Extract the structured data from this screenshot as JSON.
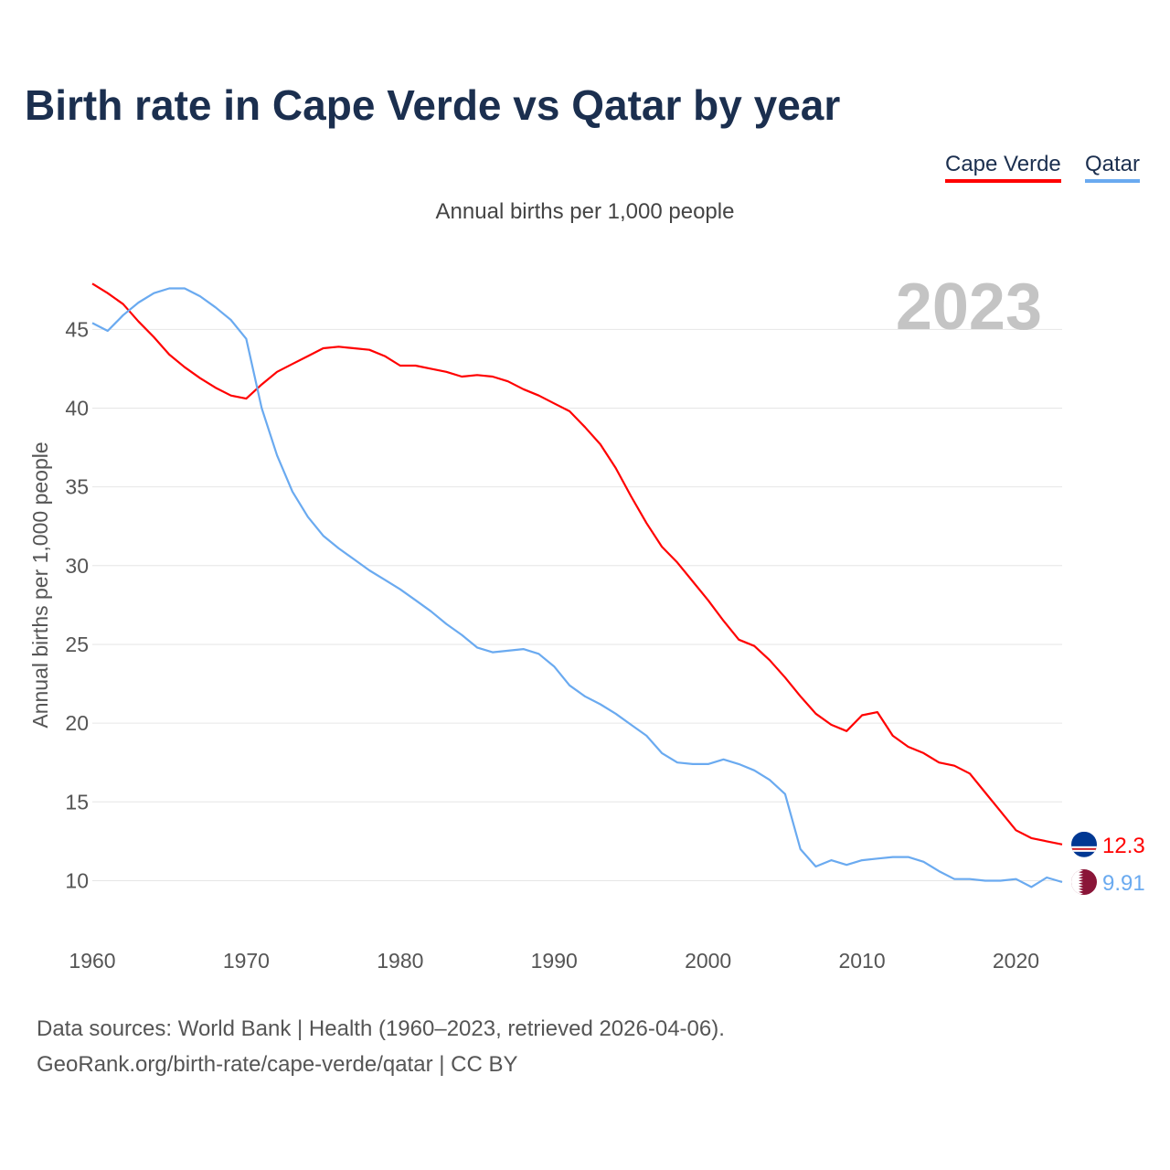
{
  "title": "Birth rate in Cape Verde vs Qatar by year",
  "legend": [
    "Cape Verde",
    "Qatar"
  ],
  "subtitle": "Annual births per 1,000 people",
  "source": [
    "Data sources: World Bank | Health (1960–2023, retrieved 2026-04-06).",
    "GeoRank.org/birth-rate/cape-verde/qatar | CC BY"
  ],
  "chart_data": {
    "type": "line",
    "title": "Birth rate in Cape Verde vs Qatar by year",
    "xlabel": "",
    "ylabel": "Annual births per 1,000 people",
    "year_label": "2023",
    "xlim": [
      1960,
      2023
    ],
    "ylim": [
      7.3,
      48.5
    ],
    "xticks": [
      1960,
      1970,
      1980,
      1990,
      2000,
      2010,
      2020
    ],
    "yticks": [
      10,
      15,
      20,
      25,
      30,
      35,
      40,
      45
    ],
    "grid": true,
    "legend_position": "top-right",
    "x": [
      1960,
      1961,
      1962,
      1963,
      1964,
      1965,
      1966,
      1967,
      1968,
      1969,
      1970,
      1971,
      1972,
      1973,
      1974,
      1975,
      1976,
      1977,
      1978,
      1979,
      1980,
      1981,
      1982,
      1983,
      1984,
      1985,
      1986,
      1987,
      1988,
      1989,
      1990,
      1991,
      1992,
      1993,
      1994,
      1995,
      1996,
      1997,
      1998,
      1999,
      2000,
      2001,
      2002,
      2003,
      2004,
      2005,
      2006,
      2007,
      2008,
      2009,
      2010,
      2011,
      2012,
      2013,
      2014,
      2015,
      2016,
      2017,
      2018,
      2019,
      2020,
      2021,
      2022,
      2023
    ],
    "series": [
      {
        "name": "Cape Verde",
        "color": "#ff0000",
        "end_label": "12.3",
        "values": [
          47.9,
          47.3,
          46.6,
          45.5,
          44.5,
          43.4,
          42.6,
          41.9,
          41.3,
          40.8,
          40.6,
          41.5,
          42.3,
          42.8,
          43.3,
          43.8,
          43.9,
          43.8,
          43.7,
          43.3,
          42.7,
          42.7,
          42.5,
          42.3,
          42.0,
          42.1,
          42.0,
          41.7,
          41.2,
          40.8,
          40.3,
          39.8,
          38.8,
          37.7,
          36.2,
          34.4,
          32.7,
          31.2,
          30.2,
          29.0,
          27.8,
          26.5,
          25.3,
          24.9,
          24.0,
          22.9,
          21.7,
          20.6,
          19.9,
          19.5,
          20.5,
          20.7,
          19.2,
          18.5,
          18.1,
          17.5,
          17.3,
          16.8,
          15.6,
          14.4,
          13.2,
          12.7,
          12.5,
          12.3
        ]
      },
      {
        "name": "Qatar",
        "color": "#6aaaf0",
        "end_label": "9.91",
        "values": [
          45.4,
          44.9,
          45.9,
          46.7,
          47.3,
          47.6,
          47.6,
          47.1,
          46.4,
          45.6,
          44.4,
          40.0,
          37.0,
          34.7,
          33.1,
          31.9,
          31.1,
          30.4,
          29.7,
          29.1,
          28.5,
          27.8,
          27.1,
          26.3,
          25.6,
          24.8,
          24.5,
          24.6,
          24.7,
          24.4,
          23.6,
          22.4,
          21.7,
          21.2,
          20.6,
          19.9,
          19.2,
          18.1,
          17.5,
          17.4,
          17.4,
          17.7,
          17.4,
          17.0,
          16.4,
          15.5,
          12.0,
          10.9,
          11.3,
          11.0,
          11.3,
          11.4,
          11.5,
          11.5,
          11.2,
          10.6,
          10.1,
          10.1,
          10.0,
          10.0,
          10.1,
          9.6,
          10.2,
          9.91
        ]
      }
    ]
  }
}
